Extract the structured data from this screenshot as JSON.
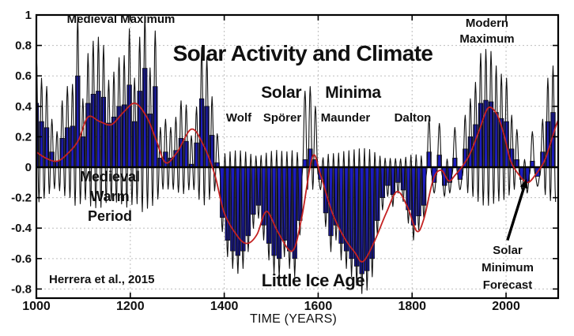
{
  "title": "Solar Activity and Climate",
  "annotations": {
    "medieval_maximum": "Medieval Maximum",
    "modern_maximum_line1": "Modern",
    "modern_maximum_line2": "Maximum",
    "solar_minima_word1": "Solar",
    "solar_minima_word2": "Minima",
    "minima_wolf": "Wolf",
    "minima_sporer": "Spörer",
    "minima_maunder": "Maunder",
    "minima_dalton": "Dalton",
    "mwp_line1": "Medieval",
    "mwp_line2": "Warm",
    "mwp_line3": "Period",
    "little_ice_age": "Little Ice Age",
    "credit": "Herrera et al., 2015",
    "forecast_line1": "Solar",
    "forecast_line2": "Minimum",
    "forecast_line3": "Forecast"
  },
  "colors": {
    "bar": "#1c1cc0",
    "bar_edge": "#000000",
    "cycle_line": "#111111",
    "trend_line": "#c42222",
    "grid": "#bdbdbd",
    "axis": "#000000"
  },
  "chart_data": {
    "type": "bar",
    "title": "Solar Activity and Climate",
    "xlabel": "TIME (YEARS)",
    "ylabel": "",
    "xlim": [
      1000,
      2111
    ],
    "ylim": [
      -0.86,
      1.0
    ],
    "grid": true,
    "x_ticks": [
      1000,
      1200,
      1400,
      1600,
      1800,
      2000
    ],
    "y_ticks": [
      1,
      0.8,
      0.6,
      0.4,
      0.2,
      0,
      -0.2,
      -0.4,
      -0.6,
      -0.8
    ],
    "y_tick_labels": [
      "1",
      "0.8",
      "0.6",
      "0.4",
      "0.2",
      "0",
      "-0.2",
      "-0.4",
      "-0.6",
      "-0.8"
    ],
    "series": [
      {
        "name": "solar-activity-cycle-means",
        "type": "bar",
        "color": "#1c1cc0",
        "points": [
          [
            1000,
            0.42
          ],
          [
            1011,
            0.3
          ],
          [
            1022,
            0.26
          ],
          [
            1033,
            0.1
          ],
          [
            1044,
            0.04
          ],
          [
            1055,
            0.19
          ],
          [
            1066,
            0.26
          ],
          [
            1077,
            0.27
          ],
          [
            1088,
            0.6
          ],
          [
            1099,
            0.2
          ],
          [
            1110,
            0.42
          ],
          [
            1121,
            0.48
          ],
          [
            1132,
            0.5
          ],
          [
            1143,
            0.46
          ],
          [
            1154,
            0.29
          ],
          [
            1165,
            0.33
          ],
          [
            1176,
            0.4
          ],
          [
            1187,
            0.41
          ],
          [
            1198,
            0.54
          ],
          [
            1209,
            0.3
          ],
          [
            1220,
            0.5
          ],
          [
            1231,
            0.65
          ],
          [
            1242,
            0.35
          ],
          [
            1253,
            0.53
          ],
          [
            1264,
            0.06
          ],
          [
            1275,
            0.1
          ],
          [
            1286,
            0.06
          ],
          [
            1297,
            0.11
          ],
          [
            1308,
            0.19
          ],
          [
            1319,
            0.17
          ],
          [
            1330,
            0.02
          ],
          [
            1341,
            0.16
          ],
          [
            1352,
            0.45
          ],
          [
            1363,
            0.4
          ],
          [
            1374,
            0.21
          ],
          [
            1385,
            0.03
          ],
          [
            1396,
            -0.33
          ],
          [
            1407,
            -0.48
          ],
          [
            1418,
            -0.55
          ],
          [
            1429,
            -0.58
          ],
          [
            1440,
            -0.55
          ],
          [
            1451,
            -0.45
          ],
          [
            1462,
            -0.31
          ],
          [
            1473,
            -0.25
          ],
          [
            1484,
            -0.38
          ],
          [
            1495,
            -0.5
          ],
          [
            1506,
            -0.58
          ],
          [
            1517,
            -0.6
          ],
          [
            1528,
            -0.48
          ],
          [
            1539,
            -0.55
          ],
          [
            1550,
            -0.6
          ],
          [
            1561,
            -0.35
          ],
          [
            1572,
            0.05
          ],
          [
            1583,
            0.12
          ],
          [
            1594,
            0.05
          ],
          [
            1605,
            -0.08
          ],
          [
            1616,
            -0.3
          ],
          [
            1627,
            -0.45
          ],
          [
            1638,
            -0.38
          ],
          [
            1649,
            -0.5
          ],
          [
            1660,
            -0.55
          ],
          [
            1671,
            -0.6
          ],
          [
            1682,
            -0.65
          ],
          [
            1693,
            -0.7
          ],
          [
            1704,
            -0.68
          ],
          [
            1715,
            -0.6
          ],
          [
            1726,
            -0.35
          ],
          [
            1737,
            -0.2
          ],
          [
            1748,
            -0.12
          ],
          [
            1759,
            -0.18
          ],
          [
            1770,
            -0.1
          ],
          [
            1781,
            -0.15
          ],
          [
            1792,
            -0.28
          ],
          [
            1803,
            -0.38
          ],
          [
            1814,
            -0.32
          ],
          [
            1825,
            -0.25
          ],
          [
            1836,
            0.1
          ],
          [
            1847,
            -0.1
          ],
          [
            1858,
            0.08
          ],
          [
            1869,
            -0.12
          ],
          [
            1880,
            -0.1
          ],
          [
            1891,
            0.06
          ],
          [
            1902,
            -0.08
          ],
          [
            1913,
            0.12
          ],
          [
            1924,
            0.2
          ],
          [
            1935,
            0.28
          ],
          [
            1946,
            0.42
          ],
          [
            1957,
            0.44
          ],
          [
            1968,
            0.43
          ],
          [
            1979,
            0.36
          ],
          [
            1990,
            0.32
          ],
          [
            2001,
            0.3
          ],
          [
            2012,
            0.12
          ],
          [
            2023,
            0.05
          ],
          [
            2034,
            -0.08
          ],
          [
            2045,
            -0.1
          ],
          [
            2056,
            0.04
          ],
          [
            2067,
            -0.06
          ],
          [
            2078,
            0.1
          ],
          [
            2089,
            0.3
          ],
          [
            2100,
            0.36
          ]
        ]
      },
      {
        "name": "solar-cycle-oscillation",
        "type": "line",
        "color": "#111111",
        "model": "oscillation through cycle peaks and inter-cycle dips derived from bar values",
        "peak_pos": [
          1.35,
          0.18
        ],
        "peak_neg": [
          1.1,
          -0.06
        ],
        "dip_pos": [
          -0.12,
          -0.3
        ],
        "dip_neg": [
          0.04,
          0.12
        ],
        "peak_overrides": {
          "1572": 0.5,
          "1583": 0.53,
          "1594": 0.4
        }
      },
      {
        "name": "long-term-trend",
        "type": "line",
        "color": "#c42222",
        "points": [
          [
            1000,
            0.1
          ],
          [
            1020,
            0.06
          ],
          [
            1045,
            0.04
          ],
          [
            1070,
            0.1
          ],
          [
            1090,
            0.18
          ],
          [
            1110,
            0.33
          ],
          [
            1135,
            0.3
          ],
          [
            1160,
            0.28
          ],
          [
            1185,
            0.36
          ],
          [
            1210,
            0.42
          ],
          [
            1235,
            0.33
          ],
          [
            1255,
            0.18
          ],
          [
            1275,
            0.03
          ],
          [
            1300,
            0.1
          ],
          [
            1330,
            0.25
          ],
          [
            1355,
            0.15
          ],
          [
            1380,
            -0.05
          ],
          [
            1400,
            -0.3
          ],
          [
            1430,
            -0.46
          ],
          [
            1450,
            -0.5
          ],
          [
            1470,
            -0.44
          ],
          [
            1490,
            -0.29
          ],
          [
            1515,
            -0.43
          ],
          [
            1545,
            -0.55
          ],
          [
            1565,
            -0.33
          ],
          [
            1588,
            0.07
          ],
          [
            1605,
            -0.05
          ],
          [
            1630,
            -0.3
          ],
          [
            1655,
            -0.46
          ],
          [
            1678,
            -0.56
          ],
          [
            1695,
            -0.62
          ],
          [
            1718,
            -0.5
          ],
          [
            1745,
            -0.3
          ],
          [
            1768,
            -0.16
          ],
          [
            1790,
            -0.26
          ],
          [
            1810,
            -0.42
          ],
          [
            1825,
            -0.34
          ],
          [
            1845,
            -0.08
          ],
          [
            1862,
            -0.02
          ],
          [
            1878,
            -0.09
          ],
          [
            1892,
            -0.05
          ],
          [
            1908,
            0.01
          ],
          [
            1925,
            0.1
          ],
          [
            1945,
            0.26
          ],
          [
            1962,
            0.39
          ],
          [
            1980,
            0.35
          ],
          [
            1995,
            0.22
          ],
          [
            2010,
            0.04
          ],
          [
            2030,
            -0.06
          ],
          [
            2047,
            -0.1
          ],
          [
            2065,
            -0.04
          ],
          [
            2080,
            0.03
          ],
          [
            2092,
            0.13
          ],
          [
            2105,
            0.26
          ],
          [
            2111,
            0.31
          ]
        ]
      }
    ],
    "arrow": {
      "tail_year": 2003,
      "tail_value": -0.48,
      "target_year": 2044,
      "target_value": -0.075
    }
  }
}
